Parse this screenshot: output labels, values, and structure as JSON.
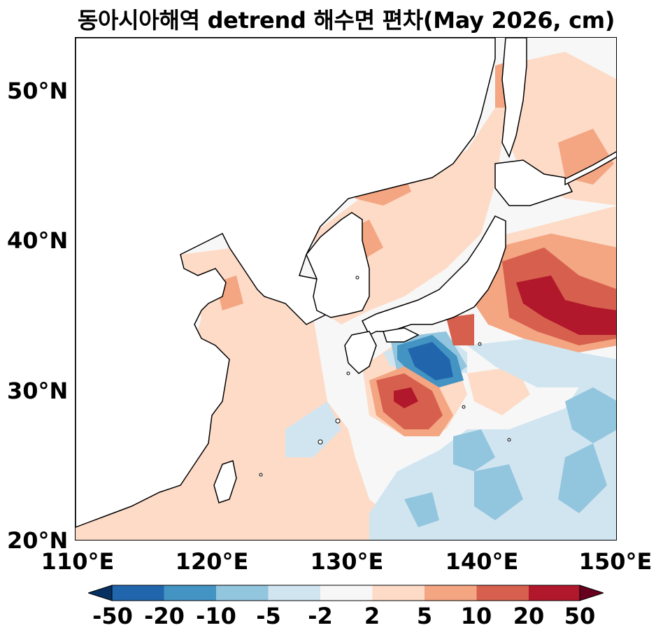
{
  "title": "동아시아해역 detrend 해수면 편차(May 2026, cm)",
  "lat_ticks": [
    "50°N",
    "40°N",
    "30°N",
    "20°N"
  ],
  "lon_ticks": [
    "110°E",
    "120°E",
    "130°E",
    "140°E",
    "150°E"
  ],
  "colorbar": {
    "labels": [
      "-50",
      "-20",
      "-10",
      "-5",
      "-2",
      "2",
      "5",
      "10",
      "20",
      "50"
    ],
    "colors": [
      "#053061",
      "#2166ac",
      "#4393c3",
      "#92c5de",
      "#d1e5f0",
      "#f7f7f7",
      "#fddbc7",
      "#f4a582",
      "#d6604d",
      "#b2182b",
      "#67001f"
    ]
  },
  "colors": {
    "land": "#ffffff",
    "coastline": "#000000",
    "ocean_neutral": "#f7f7f7"
  }
}
